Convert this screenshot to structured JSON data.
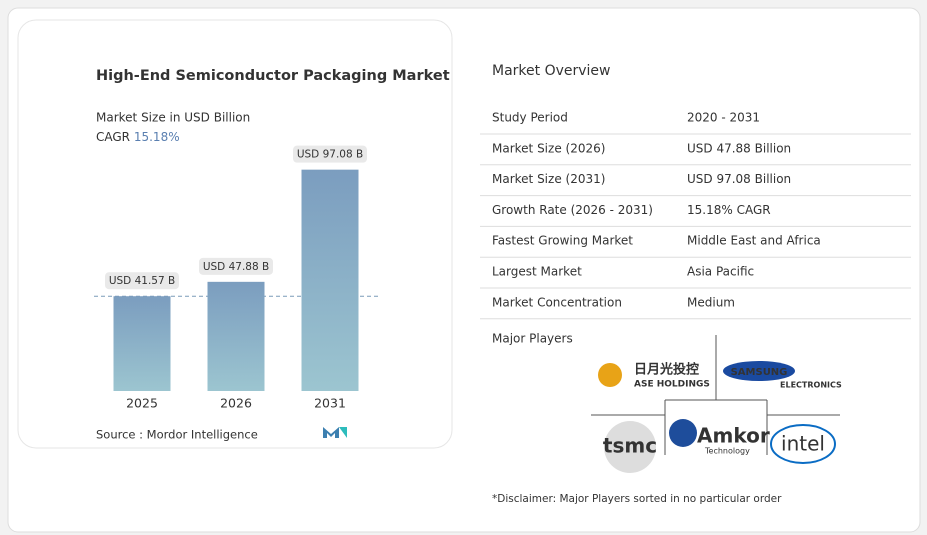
{
  "chart_data": {
    "type": "bar",
    "title": "High-End Semiconductor Packaging Market",
    "subtitle": "Market Size in USD Billion",
    "cagr_label": "CAGR",
    "cagr_value": "15.18%",
    "categories": [
      "2025",
      "2026",
      "2031"
    ],
    "values": [
      41.57,
      47.88,
      97.08
    ],
    "value_labels": [
      "USD 41.57 B",
      "USD 47.88 B",
      "USD 97.08 B"
    ],
    "color": "#7b9dbf",
    "reference_line": true,
    "source": "Source :  Mordor Intelligence"
  },
  "overview": {
    "title": "Market Overview",
    "rows": [
      [
        "Study Period",
        "2020 - 2031"
      ],
      [
        "Market Size (2026)",
        "USD 47.88 Billion"
      ],
      [
        "Market Size (2031)",
        "USD 97.08 Billion"
      ],
      [
        "Growth Rate (2026 - 2031)",
        "15.18% CAGR"
      ],
      [
        "Fastest Growing Market",
        "Middle East and Africa"
      ],
      [
        "Largest Market",
        "Asia Pacific"
      ],
      [
        "Market Concentration",
        "Medium"
      ]
    ],
    "players_title": "Major Players",
    "players": {
      "ase_cn": "日月光投控",
      "ase": "ASE HOLDINGS",
      "samsung": "SAMSUNG",
      "samsung_sub": "ELECTRONICS",
      "tsmc": "tsmc",
      "amkor": "Amkor",
      "amkor_sub": "Technology",
      "intel": "intel"
    },
    "disclaimer": "*Disclaimer: Major Players sorted in no particular order"
  }
}
